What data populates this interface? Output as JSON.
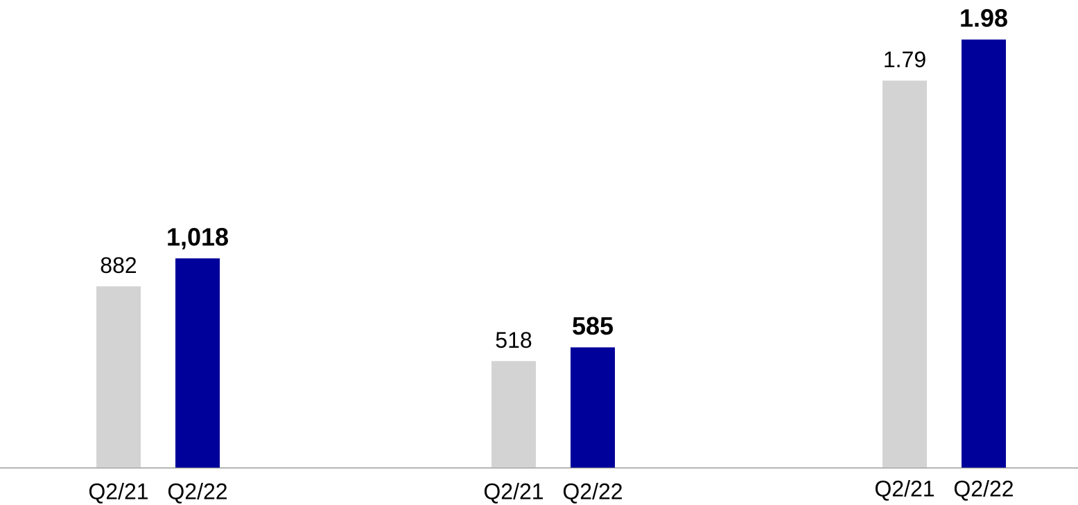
{
  "chart_data": [
    {
      "type": "bar",
      "categories": [
        "Q2/21",
        "Q2/22"
      ],
      "values": [
        882,
        1018
      ],
      "value_labels": [
        "882",
        "1,018"
      ],
      "colors": [
        "#d3d3d3",
        "#00009a"
      ],
      "ylim": [
        0,
        2275
      ]
    },
    {
      "type": "bar",
      "categories": [
        "Q2/21",
        "Q2/22"
      ],
      "values": [
        518,
        585
      ],
      "colors": [
        "#d3d3d3",
        "#00009a"
      ],
      "ylim": [
        0,
        2275
      ]
    },
    {
      "type": "bar",
      "categories": [
        "Q2/21",
        "Q2/22"
      ],
      "values": [
        1.79,
        1.98
      ],
      "colors": [
        "#d3d3d3",
        "#00009a"
      ],
      "ylim": [
        0,
        2.163
      ]
    }
  ]
}
